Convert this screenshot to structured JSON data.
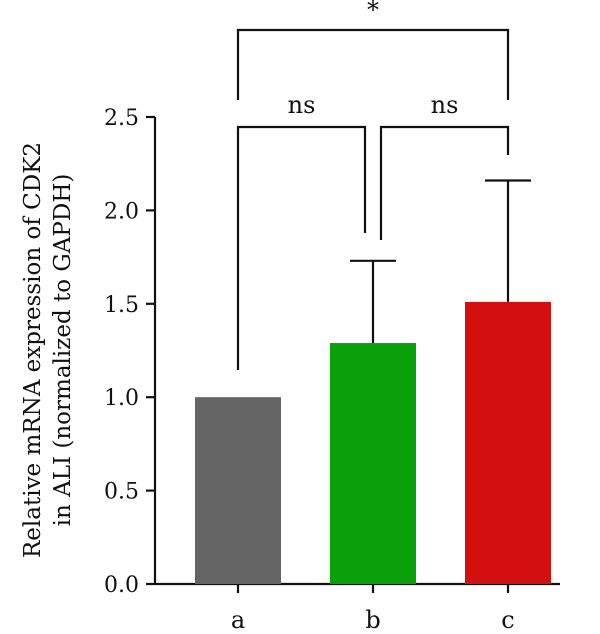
{
  "chart_data": {
    "type": "bar",
    "title": "",
    "xlabel": "",
    "ylabel_lines": [
      "Relative mRNA expression of CDK2",
      "in ALI (normalized to GAPDH)"
    ],
    "categories": [
      "a",
      "b",
      "c"
    ],
    "values": [
      1.0,
      1.29,
      1.51
    ],
    "errors": [
      0.0,
      0.44,
      0.65
    ],
    "colors": [
      "#646464",
      "#0aa00a",
      "#d40f0f"
    ],
    "ylim": [
      0,
      2.5
    ],
    "yticks": [
      "0.0",
      "0.5",
      "1.0",
      "1.5",
      "2.0",
      "2.5"
    ],
    "grid": false,
    "significance": [
      {
        "from": 0,
        "to": 1,
        "label": "ns"
      },
      {
        "from": 1,
        "to": 2,
        "label": "ns"
      },
      {
        "from": 0,
        "to": 2,
        "label": "*"
      }
    ]
  }
}
